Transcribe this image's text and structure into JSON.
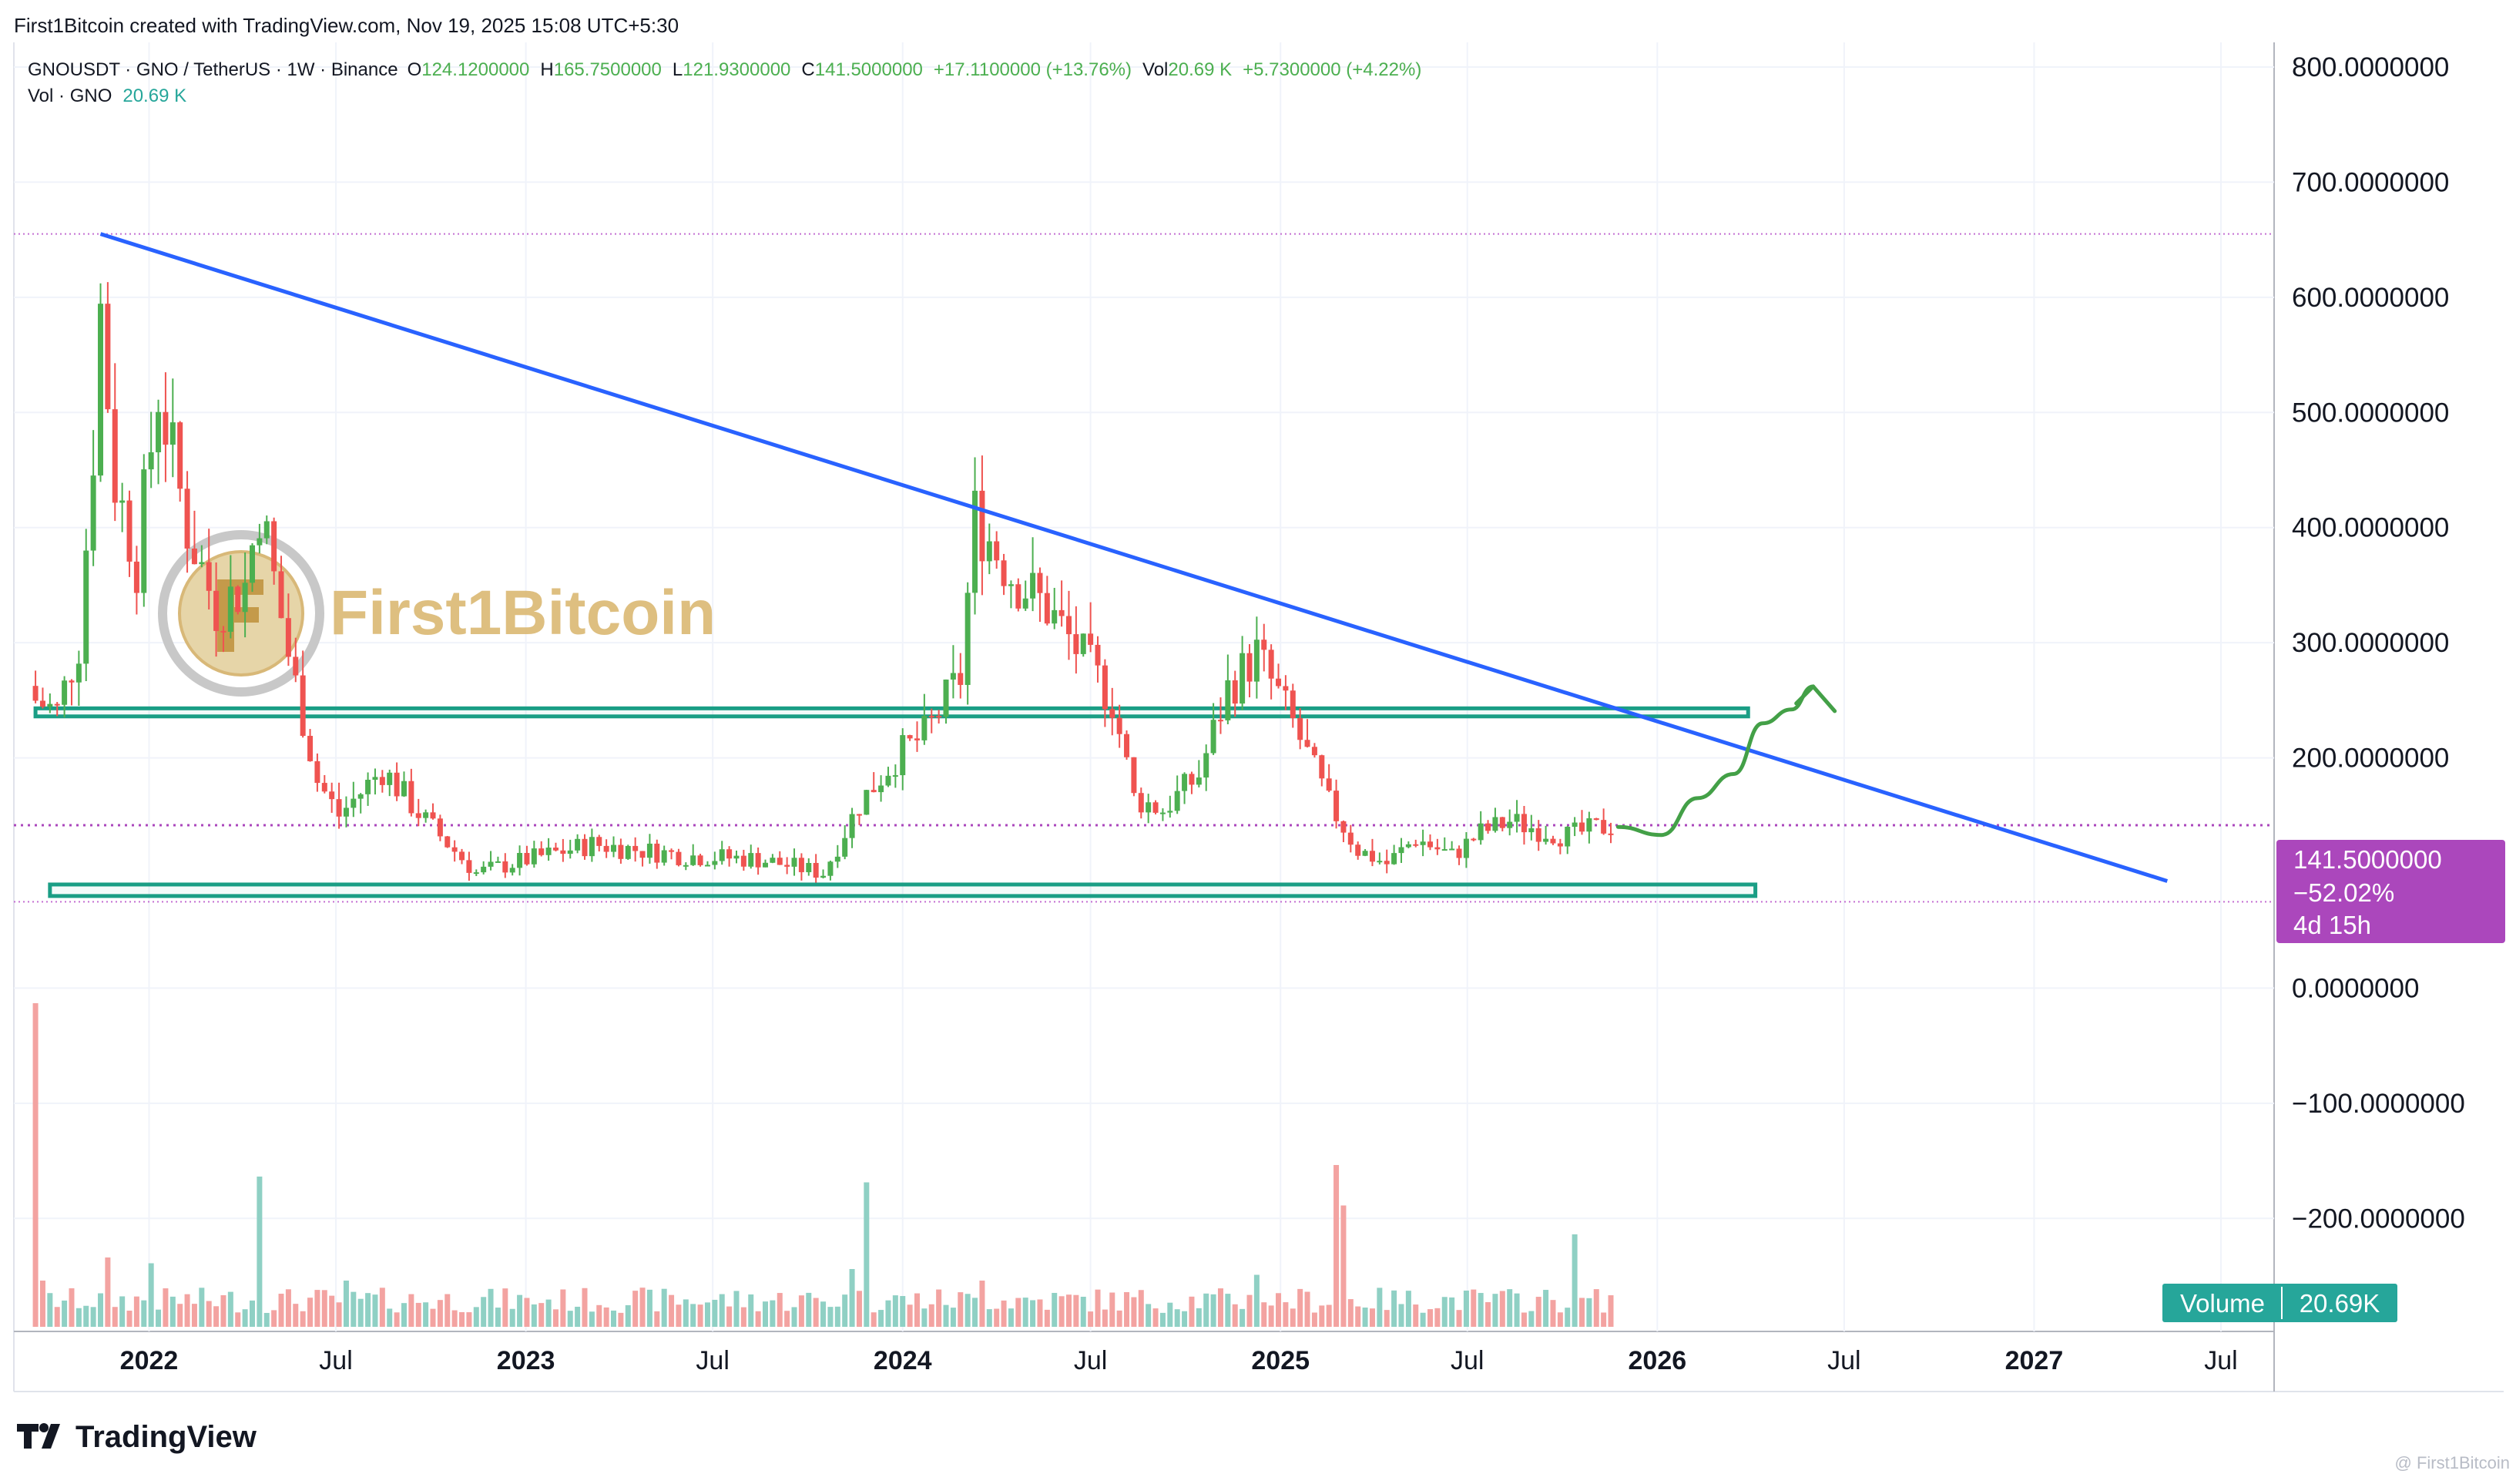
{
  "header": {
    "credit": "First1Bitcoin created with TradingView.com, Nov 19, 2025 15:08 UTC+5:30"
  },
  "legend": {
    "symbol": "GNOUSDT · GNO / TetherUS · 1W · Binance",
    "o_label": "O",
    "o_value": "124.1200000",
    "h_label": "H",
    "h_value": "165.7500000",
    "l_label": "L",
    "l_value": "121.9300000",
    "c_label": "C",
    "c_value": "141.5000000",
    "change": "+17.1100000 (+13.76%)",
    "vol_label": "Vol",
    "vol_value": "20.69 K",
    "vol_change": "+5.7300000 (+4.22%)",
    "vol_line_label": "Vol · GNO",
    "vol_line_value": "20.69 K"
  },
  "watermark": {
    "brand": "First1Bitcoin"
  },
  "price_tag": {
    "price": "141.5000000",
    "pct": "−52.02%",
    "countdown": "4d 15h"
  },
  "volume_tag": {
    "label": "Volume",
    "value": "20.69K"
  },
  "footer": {
    "logo": "TradingView",
    "corner_credit": "@ First1Bitcoin"
  },
  "colors": {
    "up": "#4caf50",
    "down": "#ef5350",
    "up_vol": "#8fd0c4",
    "down_vol": "#f3a3a1",
    "trendline": "#2962ff",
    "zone": "#1a9e85",
    "projection": "#43a047",
    "price_tag": "#ab47bc",
    "volume_tag": "#26a69a",
    "dotted": "#c46fd2"
  },
  "chart_data": {
    "type": "candlestick",
    "interval": "1W",
    "y_axis": {
      "min": -250,
      "max": 800,
      "scale": "linear",
      "ticks": [
        800,
        700,
        600,
        500,
        400,
        300,
        200,
        0,
        -100,
        -200
      ],
      "tick_labels": [
        "800.0000000",
        "700.0000000",
        "600.0000000",
        "500.0000000",
        "400.0000000",
        "300.0000000",
        "200.0000000",
        "0.0000000",
        "−100.0000000",
        "−200.0000000"
      ]
    },
    "x_axis": {
      "start": "2021-09-01",
      "end": "2027-08-20",
      "ticks": [
        {
          "label": "2022",
          "date": "2022-01-01",
          "bold": true
        },
        {
          "label": "Jul",
          "date": "2022-07-01",
          "bold": false
        },
        {
          "label": "2023",
          "date": "2023-01-01",
          "bold": true
        },
        {
          "label": "Jul",
          "date": "2023-07-01",
          "bold": false
        },
        {
          "label": "2024",
          "date": "2024-01-01",
          "bold": true
        },
        {
          "label": "Jul",
          "date": "2024-07-01",
          "bold": false
        },
        {
          "label": "2025",
          "date": "2025-01-01",
          "bold": true
        },
        {
          "label": "Jul",
          "date": "2025-07-01",
          "bold": false
        },
        {
          "label": "2026",
          "date": "2026-01-01",
          "bold": true
        },
        {
          "label": "Jul",
          "date": "2026-07-01",
          "bold": false
        },
        {
          "label": "2027",
          "date": "2027-01-01",
          "bold": true
        },
        {
          "label": "Jul",
          "date": "2027-07-01",
          "bold": false
        }
      ]
    },
    "price_anchors": [
      [
        "2021-09-13",
        250
      ],
      [
        "2021-10-04",
        240
      ],
      [
        "2021-10-25",
        300
      ],
      [
        "2021-11-08",
        470
      ],
      [
        "2021-11-15",
        590
      ],
      [
        "2021-11-29",
        440
      ],
      [
        "2021-12-20",
        370
      ],
      [
        "2022-01-10",
        520
      ],
      [
        "2022-02-07",
        400
      ],
      [
        "2022-03-07",
        330
      ],
      [
        "2022-04-04",
        350
      ],
      [
        "2022-04-18",
        420
      ],
      [
        "2022-05-16",
        290
      ],
      [
        "2022-06-13",
        180
      ],
      [
        "2022-07-04",
        150
      ],
      [
        "2022-08-15",
        190
      ],
      [
        "2022-09-26",
        145
      ],
      [
        "2022-11-14",
        100
      ],
      [
        "2022-12-26",
        110
      ],
      [
        "2023-03-06",
        125
      ],
      [
        "2023-06-05",
        115
      ],
      [
        "2023-08-14",
        112
      ],
      [
        "2023-10-16",
        100
      ],
      [
        "2023-11-20",
        160
      ],
      [
        "2023-12-25",
        200
      ],
      [
        "2024-01-22",
        220
      ],
      [
        "2024-02-26",
        270
      ],
      [
        "2024-03-11",
        410
      ],
      [
        "2024-04-15",
        360
      ],
      [
        "2024-05-20",
        330
      ],
      [
        "2024-06-17",
        295
      ],
      [
        "2024-07-22",
        250
      ],
      [
        "2024-08-12",
        165
      ],
      [
        "2024-09-09",
        155
      ],
      [
        "2024-10-14",
        185
      ],
      [
        "2024-11-11",
        260
      ],
      [
        "2024-12-09",
        290
      ],
      [
        "2025-01-13",
        230
      ],
      [
        "2025-02-17",
        160
      ],
      [
        "2025-03-17",
        120
      ],
      [
        "2025-04-14",
        108
      ],
      [
        "2025-05-12",
        130
      ],
      [
        "2025-06-16",
        115
      ],
      [
        "2025-07-14",
        135
      ],
      [
        "2025-08-11",
        145
      ],
      [
        "2025-09-08",
        138
      ],
      [
        "2025-10-06",
        132
      ],
      [
        "2025-11-17",
        141.5
      ]
    ],
    "volume_anchors": [
      [
        "2021-09-13",
        280
      ],
      [
        "2021-09-20",
        40
      ],
      [
        "2021-11-22",
        60
      ],
      [
        "2022-01-03",
        55
      ],
      [
        "2022-04-18",
        130
      ],
      [
        "2022-07-11",
        40
      ],
      [
        "2023-01-02",
        25
      ],
      [
        "2023-11-13",
        50
      ],
      [
        "2023-11-27",
        125
      ],
      [
        "2024-03-18",
        40
      ],
      [
        "2024-08-05",
        30
      ],
      [
        "2024-12-09",
        45
      ],
      [
        "2025-02-24",
        140
      ],
      [
        "2025-03-03",
        105
      ],
      [
        "2025-10-13",
        80
      ]
    ],
    "levels": {
      "ath_dotted": 655,
      "current_price": 141.5,
      "support_dotted": 75
    },
    "zones": [
      {
        "name": "resistance-zone",
        "from": "2021-09-13",
        "to": "2026-03-30",
        "low": 236,
        "high": 243
      },
      {
        "name": "support-zone",
        "from": "2021-09-27",
        "to": "2026-04-06",
        "low": 80,
        "high": 90
      }
    ],
    "trendline": {
      "from": [
        "2021-11-15",
        655
      ],
      "to": [
        "2027-05-10",
        93
      ]
    },
    "projection": {
      "points": [
        [
          "2025-11-24",
          140
        ],
        [
          "2026-01-05",
          133
        ],
        [
          "2026-02-09",
          165
        ],
        [
          "2026-03-16",
          186
        ],
        [
          "2026-04-13",
          230
        ],
        [
          "2026-05-11",
          242
        ],
        [
          "2026-06-01",
          262
        ]
      ]
    }
  }
}
